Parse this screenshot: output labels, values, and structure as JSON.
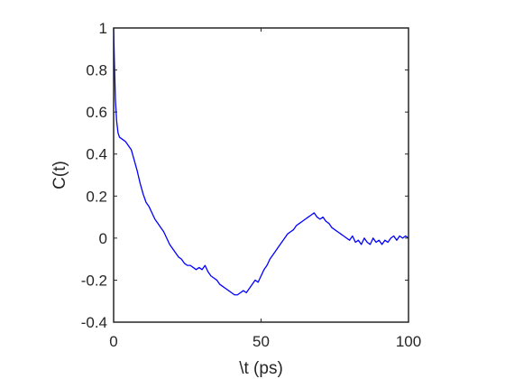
{
  "chart_data": {
    "type": "line",
    "title": "",
    "xlabel": "\\t (ps)",
    "ylabel": "C(t)",
    "xlim": [
      0,
      100
    ],
    "ylim": [
      -0.4,
      1
    ],
    "xticks": [
      0,
      50,
      100
    ],
    "xtick_labels": [
      "0",
      "50",
      "100"
    ],
    "yticks": [
      -0.4,
      -0.2,
      0,
      0.2,
      0.4,
      0.6,
      0.8,
      1
    ],
    "ytick_labels": [
      "-0.4",
      "-0.2",
      "0",
      "0.2",
      "0.4",
      "0.6",
      "0.8",
      "1"
    ],
    "grid": false,
    "box": true,
    "series": [
      {
        "color": "#0000ff",
        "x": [
          0,
          0.3,
          0.6,
          1,
          1.5,
          2,
          3,
          4,
          5,
          6,
          7,
          8,
          9,
          10,
          11,
          12,
          13,
          14,
          15,
          16,
          17,
          18,
          19,
          20,
          21,
          22,
          23,
          24,
          25,
          26,
          27,
          28,
          29,
          30,
          31,
          32,
          33,
          34,
          35,
          36,
          37,
          38,
          39,
          40,
          41,
          42,
          43,
          44,
          45,
          46,
          47,
          48,
          49,
          50,
          51,
          52,
          53,
          54,
          55,
          56,
          57,
          58,
          59,
          60,
          61,
          62,
          63,
          64,
          65,
          66,
          67,
          68,
          69,
          70,
          71,
          72,
          73,
          74,
          75,
          76,
          77,
          78,
          79,
          80,
          81,
          82,
          83,
          84,
          85,
          86,
          87,
          88,
          89,
          90,
          91,
          92,
          93,
          94,
          95,
          96,
          97,
          98,
          99,
          100
        ],
        "y": [
          1.0,
          0.82,
          0.66,
          0.56,
          0.5,
          0.48,
          0.47,
          0.46,
          0.44,
          0.42,
          0.37,
          0.32,
          0.26,
          0.21,
          0.17,
          0.15,
          0.12,
          0.09,
          0.07,
          0.05,
          0.03,
          0.0,
          -0.03,
          -0.05,
          -0.07,
          -0.09,
          -0.1,
          -0.12,
          -0.13,
          -0.13,
          -0.14,
          -0.15,
          -0.14,
          -0.15,
          -0.13,
          -0.16,
          -0.18,
          -0.19,
          -0.2,
          -0.22,
          -0.23,
          -0.24,
          -0.25,
          -0.26,
          -0.27,
          -0.27,
          -0.26,
          -0.25,
          -0.26,
          -0.24,
          -0.22,
          -0.2,
          -0.21,
          -0.18,
          -0.15,
          -0.13,
          -0.1,
          -0.08,
          -0.06,
          -0.04,
          -0.02,
          0.0,
          0.02,
          0.03,
          0.04,
          0.06,
          0.07,
          0.08,
          0.09,
          0.1,
          0.11,
          0.12,
          0.1,
          0.09,
          0.1,
          0.08,
          0.07,
          0.05,
          0.04,
          0.03,
          0.02,
          0.01,
          0.0,
          -0.01,
          0.01,
          -0.02,
          -0.01,
          -0.03,
          0.0,
          -0.02,
          -0.03,
          0.0,
          -0.02,
          -0.01,
          -0.03,
          -0.01,
          -0.02,
          0.0,
          0.01,
          -0.01,
          0.01,
          0.0,
          0.01,
          0.0
        ]
      }
    ]
  }
}
